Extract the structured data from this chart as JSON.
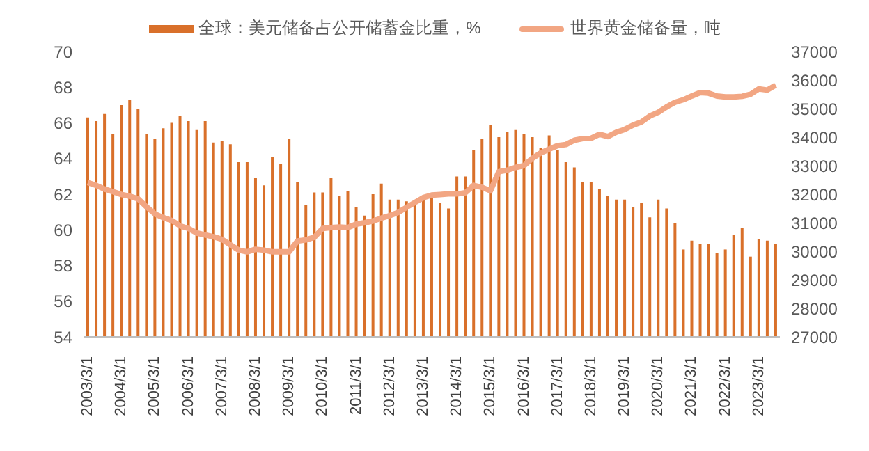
{
  "chart_data": {
    "type": "bar",
    "categories": [
      "2003/3/1",
      null,
      null,
      null,
      "2004/3/1",
      null,
      null,
      null,
      "2005/3/1",
      null,
      null,
      null,
      "2006/3/1",
      null,
      null,
      null,
      "2007/3/1",
      null,
      null,
      null,
      "2008/3/1",
      null,
      null,
      null,
      "2009/3/1",
      null,
      null,
      null,
      "2010/3/1",
      null,
      null,
      null,
      "2011/3/1",
      null,
      null,
      null,
      "2012/3/1",
      null,
      null,
      null,
      "2013/3/1",
      null,
      null,
      null,
      "2014/3/1",
      null,
      null,
      null,
      "2015/3/1",
      null,
      null,
      null,
      "2016/3/1",
      null,
      null,
      null,
      "2017/3/1",
      null,
      null,
      null,
      "2018/3/1",
      null,
      null,
      null,
      "2019/3/1",
      null,
      null,
      null,
      "2020/3/1",
      null,
      null,
      null,
      "2021/3/1",
      null,
      null,
      null,
      "2022/3/1",
      null,
      null,
      null,
      "2023/3/1",
      null,
      null
    ],
    "series": [
      {
        "name": "全球：美元储备占公开储蓄金比重，%",
        "color": "#d9702a",
        "values": [
          66.3,
          66.1,
          66.5,
          65.4,
          67.0,
          67.3,
          66.8,
          65.4,
          65.1,
          65.7,
          66.0,
          66.4,
          66.1,
          65.6,
          66.1,
          64.9,
          65.0,
          64.8,
          63.8,
          63.8,
          62.9,
          62.5,
          64.1,
          63.7,
          65.1,
          62.7,
          61.4,
          62.1,
          62.1,
          62.9,
          61.9,
          62.2,
          61.3,
          60.8,
          62.0,
          62.6,
          61.7,
          61.7,
          61.6,
          61.5,
          61.9,
          61.9,
          61.5,
          61.2,
          63.0,
          63.0,
          64.5,
          65.1,
          65.9,
          65.2,
          65.5,
          65.6,
          65.4,
          65.2,
          64.6,
          65.3,
          64.5,
          63.8,
          63.5,
          62.7,
          62.7,
          62.3,
          61.9,
          61.7,
          61.7,
          61.3,
          61.5,
          60.7,
          61.7,
          61.2,
          60.4,
          58.9,
          59.4,
          59.2,
          59.2,
          58.7,
          58.9,
          59.7,
          60.1,
          58.5,
          59.5,
          59.4,
          59.2
        ]
      },
      {
        "name": "世界黄金储备量，吨",
        "type": "line",
        "axis": "y2",
        "color": "#f2a683",
        "values": [
          32410,
          32310,
          32180,
          32090,
          31990,
          31930,
          31840,
          31560,
          31310,
          31180,
          31080,
          30890,
          30800,
          30640,
          30570,
          30510,
          30420,
          30230,
          30040,
          29980,
          30070,
          30040,
          29980,
          29980,
          29980,
          30360,
          30400,
          30490,
          30800,
          30830,
          30850,
          30830,
          30950,
          31000,
          31060,
          31160,
          31250,
          31360,
          31540,
          31710,
          31880,
          31970,
          31990,
          32010,
          32010,
          32050,
          32310,
          32240,
          32120,
          32790,
          32840,
          32940,
          33000,
          33260,
          33450,
          33580,
          33700,
          33740,
          33890,
          33950,
          33960,
          34100,
          34020,
          34170,
          34270,
          34420,
          34530,
          34740,
          34870,
          35060,
          35220,
          35310,
          35440,
          35560,
          35540,
          35440,
          35410,
          35410,
          35430,
          35500,
          35690,
          35650,
          35820
        ]
      }
    ],
    "ylim": [
      54,
      70
    ],
    "yticks": [
      54,
      56,
      58,
      60,
      62,
      64,
      66,
      68,
      70
    ],
    "y2lim": [
      27000,
      37000
    ],
    "y2ticks": [
      27000,
      28000,
      29000,
      30000,
      31000,
      32000,
      33000,
      34000,
      35000,
      36000,
      37000
    ],
    "legend": "top",
    "grid": false
  }
}
